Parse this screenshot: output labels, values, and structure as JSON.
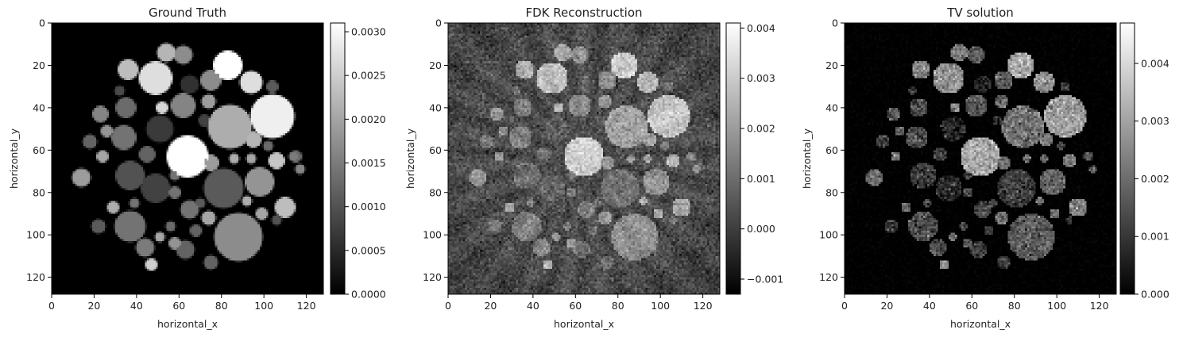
{
  "chart_data": [
    {
      "type": "heatmap",
      "title": "Ground Truth",
      "xlabel": "horizontal_x",
      "ylabel": "horizontal_y",
      "xlim": [
        0,
        128
      ],
      "ylim": [
        128,
        0
      ],
      "xticks": [
        0,
        20,
        40,
        60,
        80,
        100,
        120
      ],
      "yticks": [
        0,
        20,
        40,
        60,
        80,
        100,
        120
      ],
      "colormap": "gray",
      "colorbar": {
        "min": 0.0,
        "max": 0.0031,
        "ticks": [
          0.0,
          0.0005,
          0.001,
          0.0015,
          0.002,
          0.0025,
          0.003
        ],
        "tick_labels": [
          "0.0000",
          "0.0005",
          "0.0010",
          "0.0015",
          "0.0020",
          "0.0025",
          "0.0030"
        ]
      },
      "background": 0.0,
      "noise": 0.0,
      "streaks": false,
      "discs": [
        {
          "x": 64,
          "y": 63,
          "r": 9.5,
          "value": 0.0031
        },
        {
          "x": 84,
          "y": 49,
          "r": 10,
          "value": 0.0021
        },
        {
          "x": 104,
          "y": 44,
          "r": 10,
          "value": 0.0029
        },
        {
          "x": 88,
          "y": 101,
          "r": 11,
          "value": 0.0017
        },
        {
          "x": 81,
          "y": 78,
          "r": 9,
          "value": 0.0011
        },
        {
          "x": 37,
          "y": 72,
          "r": 6.5,
          "value": 0.001
        },
        {
          "x": 37,
          "y": 96,
          "r": 7,
          "value": 0.0014
        },
        {
          "x": 49,
          "y": 26,
          "r": 7.5,
          "value": 0.0027
        },
        {
          "x": 83,
          "y": 20,
          "r": 6.5,
          "value": 0.0031
        },
        {
          "x": 49,
          "y": 78,
          "r": 6.5,
          "value": 0.0008
        },
        {
          "x": 98,
          "y": 75,
          "r": 6.5,
          "value": 0.0018
        },
        {
          "x": 62,
          "y": 39,
          "r": 5.5,
          "value": 0.0016
        },
        {
          "x": 34,
          "y": 54,
          "r": 5.5,
          "value": 0.0014
        },
        {
          "x": 51,
          "y": 50,
          "r": 6,
          "value": 0.0007
        },
        {
          "x": 75,
          "y": 27,
          "r": 4.5,
          "value": 0.0017
        },
        {
          "x": 94,
          "y": 28,
          "r": 5,
          "value": 0.0027
        },
        {
          "x": 36,
          "y": 22,
          "r": 4.5,
          "value": 0.0023
        },
        {
          "x": 110,
          "y": 87,
          "r": 4.5,
          "value": 0.0023
        },
        {
          "x": 35,
          "y": 40,
          "r": 4.5,
          "value": 0.0013
        },
        {
          "x": 14,
          "y": 73,
          "r": 4,
          "value": 0.0019
        },
        {
          "x": 23,
          "y": 43,
          "r": 3.5,
          "value": 0.0016
        },
        {
          "x": 44,
          "y": 106,
          "r": 4,
          "value": 0.0015
        },
        {
          "x": 65,
          "y": 88,
          "r": 4,
          "value": 0.0014
        },
        {
          "x": 65,
          "y": 29,
          "r": 4,
          "value": 0.0006
        },
        {
          "x": 54,
          "y": 14,
          "r": 4,
          "value": 0.0022
        },
        {
          "x": 62,
          "y": 15,
          "r": 4,
          "value": 0.0017
        },
        {
          "x": 63,
          "y": 107,
          "r": 4,
          "value": 0.0012
        },
        {
          "x": 106,
          "y": 65,
          "r": 3.5,
          "value": 0.0024
        },
        {
          "x": 95,
          "y": 55,
          "r": 3.5,
          "value": 0.0022
        },
        {
          "x": 22,
          "y": 96,
          "r": 3,
          "value": 0.0011
        },
        {
          "x": 45,
          "y": 62,
          "r": 3.5,
          "value": 0.0012
        },
        {
          "x": 58,
          "y": 104,
          "r": 2.5,
          "value": 0.0018
        },
        {
          "x": 75,
          "y": 66,
          "r": 3.5,
          "value": 0.0019
        },
        {
          "x": 74,
          "y": 37,
          "r": 3,
          "value": 0.0019
        },
        {
          "x": 75,
          "y": 113,
          "r": 3,
          "value": 0.0012
        },
        {
          "x": 74,
          "y": 92,
          "r": 3,
          "value": 0.002
        },
        {
          "x": 18,
          "y": 56,
          "r": 3,
          "value": 0.0012
        },
        {
          "x": 24,
          "y": 63,
          "r": 2.5,
          "value": 0.002
        },
        {
          "x": 29,
          "y": 87,
          "r": 2.5,
          "value": 0.0021
        },
        {
          "x": 26,
          "y": 51,
          "r": 2.5,
          "value": 0.0018
        },
        {
          "x": 47,
          "y": 114,
          "r": 2.5,
          "value": 0.0025
        },
        {
          "x": 58,
          "y": 80,
          "r": 2.5,
          "value": 0.0014
        },
        {
          "x": 68,
          "y": 98,
          "r": 2.5,
          "value": 0.0012
        },
        {
          "x": 52,
          "y": 40,
          "r": 2.5,
          "value": 0.0026
        },
        {
          "x": 99,
          "y": 90,
          "r": 2.5,
          "value": 0.002
        },
        {
          "x": 115,
          "y": 63,
          "r": 2.5,
          "value": 0.0013
        },
        {
          "x": 114,
          "y": 63,
          "r": 2,
          "value": 0.0015
        },
        {
          "x": 72,
          "y": 46,
          "r": 2.5,
          "value": 0.0008
        },
        {
          "x": 104,
          "y": 30,
          "r": 2.5,
          "value": 0.0011
        },
        {
          "x": 106,
          "y": 93,
          "r": 2,
          "value": 0.001
        },
        {
          "x": 117,
          "y": 69,
          "r": 2,
          "value": 0.0016
        },
        {
          "x": 94,
          "y": 64,
          "r": 2,
          "value": 0.002
        },
        {
          "x": 39,
          "y": 85,
          "r": 2,
          "value": 0.0014
        },
        {
          "x": 32,
          "y": 32,
          "r": 2,
          "value": 0.0009
        },
        {
          "x": 58,
          "y": 72,
          "r": 2,
          "value": 0.0014
        },
        {
          "x": 86,
          "y": 64,
          "r": 2,
          "value": 0.0021
        },
        {
          "x": 51,
          "y": 101,
          "r": 2,
          "value": 0.002
        },
        {
          "x": 92,
          "y": 84,
          "r": 2,
          "value": 0.0021
        },
        {
          "x": 102,
          "y": 58,
          "r": 2,
          "value": 0.0013
        },
        {
          "x": 56,
          "y": 96,
          "r": 2,
          "value": 0.0013
        },
        {
          "x": 70,
          "y": 85,
          "r": 2,
          "value": 0.0011
        }
      ]
    },
    {
      "type": "heatmap",
      "title": "FDK Reconstruction",
      "xlabel": "horizontal_x",
      "ylabel": "horizontal_y",
      "xlim": [
        0,
        128
      ],
      "ylim": [
        128,
        0
      ],
      "xticks": [
        0,
        20,
        40,
        60,
        80,
        100,
        120
      ],
      "yticks": [
        0,
        20,
        40,
        60,
        80,
        100,
        120
      ],
      "colormap": "gray",
      "colorbar": {
        "min": -0.0013,
        "max": 0.0041,
        "ticks": [
          -0.001,
          0.0,
          0.001,
          0.002,
          0.003,
          0.004
        ],
        "tick_labels": [
          "−0.001",
          "0.000",
          "0.001",
          "0.002",
          "0.003",
          "0.004"
        ]
      },
      "background": 0.0003,
      "noise": 0.00035,
      "streaks": true,
      "discs": "same-as-ground-truth"
    },
    {
      "type": "heatmap",
      "title": "TV solution",
      "xlabel": "horizontal_x",
      "ylabel": "horizontal_y",
      "xlim": [
        0,
        128
      ],
      "ylim": [
        128,
        0
      ],
      "xticks": [
        0,
        20,
        40,
        60,
        80,
        100,
        120
      ],
      "yticks": [
        0,
        20,
        40,
        60,
        80,
        100,
        120
      ],
      "colormap": "gray",
      "colorbar": {
        "min": 0.0,
        "max": 0.0047,
        "ticks": [
          0.0,
          0.001,
          0.002,
          0.003,
          0.004
        ],
        "tick_labels": [
          "0.000",
          "0.001",
          "0.002",
          "0.003",
          "0.004"
        ]
      },
      "background": 0.0,
      "noise": 0.00045,
      "streaks": false,
      "discs": "same-as-ground-truth"
    }
  ]
}
